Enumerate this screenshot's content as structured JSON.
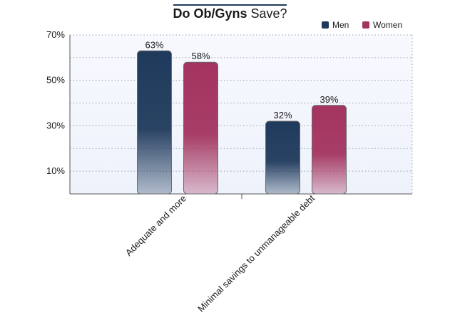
{
  "chart_data": {
    "type": "bar",
    "title_bold": "Do Ob/Gyns",
    "title_rest": "Save?",
    "categories": [
      "Adequate and more",
      "Minimal savings to unmanageable debt"
    ],
    "series": [
      {
        "name": "Men",
        "values": [
          63,
          32
        ],
        "labels": [
          "63%",
          "32%"
        ],
        "color": "#1f3a5c"
      },
      {
        "name": "Women",
        "values": [
          58,
          39
        ],
        "labels": [
          "58%",
          "39%"
        ],
        "color": "#a3345f"
      }
    ],
    "yticks": [
      {
        "value": 10,
        "label": "10%"
      },
      {
        "value": 30,
        "label": "30%"
      },
      {
        "value": 50,
        "label": "50%"
      },
      {
        "value": 70,
        "label": "70%"
      }
    ],
    "ylim": [
      0,
      70
    ],
    "grid": true,
    "legend_position": "top-right",
    "plot_background": "#eef2fb"
  }
}
